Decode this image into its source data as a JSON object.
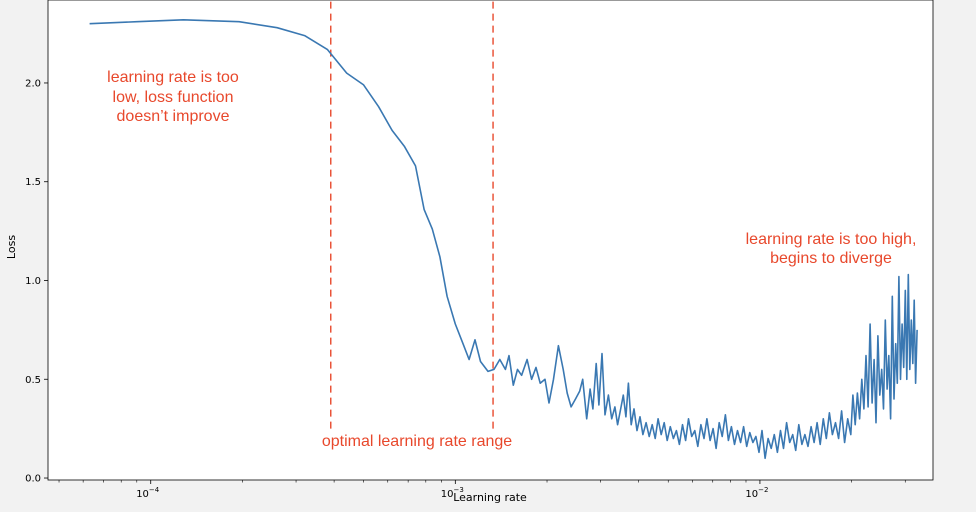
{
  "chart_data": {
    "type": "line",
    "xlabel": "Learning rate",
    "ylabel": "Loss",
    "xscale": "log",
    "xlim": [
      4.6e-05,
      0.037
    ],
    "ylim": [
      -0.01,
      2.42
    ],
    "grid": false,
    "x_ticks": [
      {
        "value": 0.0001,
        "base": "10",
        "exp": "−4"
      },
      {
        "value": 0.001,
        "base": "10",
        "exp": "−3"
      },
      {
        "value": 0.01,
        "base": "10",
        "exp": "−2"
      }
    ],
    "y_ticks": [
      {
        "value": 0.0,
        "label": "0.0"
      },
      {
        "value": 0.5,
        "label": "0.5"
      },
      {
        "value": 1.0,
        "label": "1.0"
      },
      {
        "value": 1.5,
        "label": "1.5"
      },
      {
        "value": 2.0,
        "label": "2.0"
      }
    ],
    "series": [
      {
        "color": "#3a78b2",
        "points": [
          [
            6.3e-05,
            2.3
          ],
          [
            9e-05,
            2.31
          ],
          [
            0.000128,
            2.32
          ],
          [
            0.000195,
            2.31
          ],
          [
            0.00026,
            2.28
          ],
          [
            0.00032,
            2.24
          ],
          [
            0.00038,
            2.17
          ],
          [
            0.00044,
            2.05
          ],
          [
            0.0005,
            1.99
          ],
          [
            0.00056,
            1.88
          ],
          [
            0.00062,
            1.76
          ],
          [
            0.00068,
            1.68
          ],
          [
            0.00074,
            1.58
          ],
          [
            0.00079,
            1.36
          ],
          [
            0.00084,
            1.26
          ],
          [
            0.00089,
            1.12
          ],
          [
            0.00094,
            0.92
          ],
          [
            0.001,
            0.78
          ],
          [
            0.00106,
            0.68
          ],
          [
            0.00111,
            0.6
          ],
          [
            0.00116,
            0.7
          ],
          [
            0.00121,
            0.59
          ],
          [
            0.00128,
            0.54
          ],
          [
            0.00134,
            0.55
          ],
          [
            0.0014,
            0.6
          ],
          [
            0.00146,
            0.55
          ],
          [
            0.0015,
            0.62
          ],
          [
            0.00155,
            0.47
          ],
          [
            0.0016,
            0.55
          ],
          [
            0.00165,
            0.52
          ],
          [
            0.00172,
            0.6
          ],
          [
            0.00178,
            0.5
          ],
          [
            0.00184,
            0.56
          ],
          [
            0.0019,
            0.48
          ],
          [
            0.00197,
            0.5
          ],
          [
            0.00203,
            0.38
          ],
          [
            0.0021,
            0.5
          ],
          [
            0.00218,
            0.67
          ],
          [
            0.00226,
            0.55
          ],
          [
            0.00233,
            0.43
          ],
          [
            0.0024,
            0.36
          ],
          [
            0.00248,
            0.4
          ],
          [
            0.00256,
            0.44
          ],
          [
            0.00262,
            0.5
          ],
          [
            0.0027,
            0.3
          ],
          [
            0.00277,
            0.45
          ],
          [
            0.00283,
            0.35
          ],
          [
            0.0029,
            0.58
          ],
          [
            0.00296,
            0.37
          ],
          [
            0.00303,
            0.63
          ],
          [
            0.0031,
            0.32
          ],
          [
            0.00318,
            0.42
          ],
          [
            0.00326,
            0.3
          ],
          [
            0.00334,
            0.36
          ],
          [
            0.00341,
            0.27
          ],
          [
            0.00348,
            0.34
          ],
          [
            0.00356,
            0.42
          ],
          [
            0.00363,
            0.31
          ],
          [
            0.0037,
            0.48
          ],
          [
            0.00378,
            0.27
          ],
          [
            0.00386,
            0.35
          ],
          [
            0.00395,
            0.24
          ],
          [
            0.00404,
            0.31
          ],
          [
            0.00413,
            0.22
          ],
          [
            0.00423,
            0.28
          ],
          [
            0.00433,
            0.21
          ],
          [
            0.00443,
            0.27
          ],
          [
            0.00453,
            0.2
          ],
          [
            0.00463,
            0.3
          ],
          [
            0.00474,
            0.22
          ],
          [
            0.00485,
            0.28
          ],
          [
            0.00496,
            0.19
          ],
          [
            0.00508,
            0.26
          ],
          [
            0.0052,
            0.2
          ],
          [
            0.00532,
            0.24
          ],
          [
            0.00544,
            0.17
          ],
          [
            0.00557,
            0.27
          ],
          [
            0.0057,
            0.19
          ],
          [
            0.00583,
            0.3
          ],
          [
            0.00597,
            0.21
          ],
          [
            0.00611,
            0.24
          ],
          [
            0.00625,
            0.16
          ],
          [
            0.0064,
            0.27
          ],
          [
            0.00655,
            0.2
          ],
          [
            0.0067,
            0.3
          ],
          [
            0.00686,
            0.19
          ],
          [
            0.00702,
            0.25
          ],
          [
            0.00718,
            0.15
          ],
          [
            0.00735,
            0.28
          ],
          [
            0.00752,
            0.21
          ],
          [
            0.0077,
            0.32
          ],
          [
            0.00788,
            0.19
          ],
          [
            0.00806,
            0.26
          ],
          [
            0.00825,
            0.17
          ],
          [
            0.00844,
            0.24
          ],
          [
            0.00864,
            0.18
          ],
          [
            0.00884,
            0.26
          ],
          [
            0.00905,
            0.16
          ],
          [
            0.00926,
            0.23
          ],
          [
            0.00948,
            0.18
          ],
          [
            0.0097,
            0.21
          ],
          [
            0.00993,
            0.13
          ],
          [
            0.01016,
            0.24
          ],
          [
            0.0104,
            0.1
          ],
          [
            0.01064,
            0.2
          ],
          [
            0.01089,
            0.15
          ],
          [
            0.01115,
            0.22
          ],
          [
            0.01141,
            0.13
          ],
          [
            0.01168,
            0.24
          ],
          [
            0.01195,
            0.15
          ],
          [
            0.01223,
            0.28
          ],
          [
            0.01252,
            0.18
          ],
          [
            0.01281,
            0.22
          ],
          [
            0.01311,
            0.14
          ],
          [
            0.01342,
            0.27
          ],
          [
            0.01373,
            0.17
          ],
          [
            0.01405,
            0.22
          ],
          [
            0.01438,
            0.16
          ],
          [
            0.01472,
            0.26
          ],
          [
            0.01506,
            0.18
          ],
          [
            0.01541,
            0.28
          ],
          [
            0.01577,
            0.17
          ],
          [
            0.01614,
            0.3
          ],
          [
            0.01652,
            0.2
          ],
          [
            0.01691,
            0.33
          ],
          [
            0.0173,
            0.22
          ],
          [
            0.0177,
            0.28
          ],
          [
            0.01812,
            0.2
          ],
          [
            0.01854,
            0.34
          ],
          [
            0.01897,
            0.18
          ],
          [
            0.01941,
            0.3
          ],
          [
            0.01987,
            0.22
          ],
          [
            0.0202,
            0.42
          ],
          [
            0.02055,
            0.27
          ],
          [
            0.0209,
            0.43
          ],
          [
            0.02125,
            0.3
          ],
          [
            0.0216,
            0.5
          ],
          [
            0.02195,
            0.35
          ],
          [
            0.0223,
            0.62
          ],
          [
            0.02265,
            0.36
          ],
          [
            0.023,
            0.78
          ],
          [
            0.02335,
            0.38
          ],
          [
            0.0237,
            0.6
          ],
          [
            0.02405,
            0.28
          ],
          [
            0.0244,
            0.72
          ],
          [
            0.02475,
            0.42
          ],
          [
            0.0251,
            0.55
          ],
          [
            0.02545,
            0.35
          ],
          [
            0.0258,
            0.8
          ],
          [
            0.02615,
            0.45
          ],
          [
            0.0265,
            0.62
          ],
          [
            0.02685,
            0.3
          ],
          [
            0.0272,
            0.92
          ],
          [
            0.02755,
            0.4
          ],
          [
            0.0279,
            0.68
          ],
          [
            0.02825,
            0.48
          ],
          [
            0.0286,
            1.02
          ],
          [
            0.02895,
            0.5
          ],
          [
            0.0293,
            0.78
          ],
          [
            0.02965,
            0.56
          ],
          [
            0.03,
            0.95
          ],
          [
            0.03035,
            0.5
          ],
          [
            0.0307,
            1.03
          ],
          [
            0.03105,
            0.55
          ],
          [
            0.0314,
            0.8
          ],
          [
            0.03175,
            0.58
          ],
          [
            0.0321,
            0.9
          ],
          [
            0.03245,
            0.48
          ],
          [
            0.0328,
            0.75
          ]
        ]
      }
    ],
    "vlines": [
      {
        "x": 0.00039,
        "y0": 0.25,
        "y1": 2.42,
        "color": "#e8482c",
        "style": "dashed"
      },
      {
        "x": 0.00133,
        "y0": 0.25,
        "y1": 2.42,
        "color": "#e8482c",
        "style": "dashed"
      }
    ],
    "annotations": [
      {
        "lines": [
          "learning rate is too",
          "low, loss function",
          "doesn’t improve"
        ],
        "color": "#e8482c"
      },
      {
        "lines": [
          "optimal learning rate range"
        ],
        "color": "#e8482c"
      },
      {
        "lines": [
          "learning rate is too high,",
          "begins to diverge"
        ],
        "color": "#e8482c"
      }
    ]
  }
}
